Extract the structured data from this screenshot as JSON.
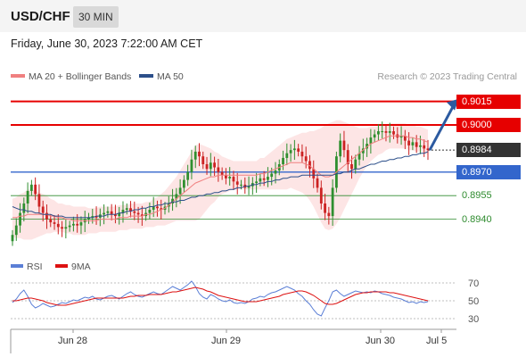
{
  "header": {
    "pair": "USD/CHF",
    "timeframe": "30 MIN"
  },
  "datetime": "Friday, June 30, 2023 7:22:00 AM CET",
  "legend": {
    "ma20_bb": "MA 20 + Bollinger Bands",
    "ma50": "MA 50",
    "credit": "Research © 2023 Trading Central"
  },
  "rsi_legend": {
    "rsi": "RSI",
    "ma9": "9MA"
  },
  "colors": {
    "resistance": "#e60000",
    "pivot": "#3366cc",
    "support": "#2e8b2e",
    "current": "#333333",
    "ma20": "#f08080",
    "bb_fill": "#fde0e0",
    "ma50": "#2c4f8a",
    "up_candle": "#2f8f2f",
    "down_candle": "#cc2222",
    "arrow": "#2c5aa0"
  },
  "chart_data": [
    {
      "type": "candlestick",
      "title": "USD/CHF",
      "ylim": [
        0.8925,
        0.9025
      ],
      "x_ticks": [
        "Jun 28",
        "Jun 29",
        "Jun 30",
        "Jul 5"
      ],
      "levels": [
        {
          "label": "0.9015",
          "value": 0.9015,
          "kind": "resistance"
        },
        {
          "label": "0.9000",
          "value": 0.9,
          "kind": "resistance"
        },
        {
          "label": "0.8984",
          "value": 0.8984,
          "kind": "current"
        },
        {
          "label": "0.8970",
          "value": 0.897,
          "kind": "pivot"
        },
        {
          "label": "0.8955",
          "value": 0.8955,
          "kind": "support"
        },
        {
          "label": "0.8940",
          "value": 0.894,
          "kind": "support"
        }
      ],
      "close": [
        0.893,
        0.8936,
        0.8944,
        0.895,
        0.8958,
        0.8962,
        0.8956,
        0.8948,
        0.8944,
        0.894,
        0.8938,
        0.8937,
        0.8935,
        0.8934,
        0.8935,
        0.8936,
        0.8937,
        0.8936,
        0.8938,
        0.894,
        0.8941,
        0.8942,
        0.8941,
        0.8943,
        0.8944,
        0.8945,
        0.8943,
        0.8942,
        0.8944,
        0.8946,
        0.8947,
        0.8945,
        0.8944,
        0.8943,
        0.8942,
        0.8944,
        0.8946,
        0.8948,
        0.8947,
        0.8946,
        0.8948,
        0.895,
        0.8953,
        0.8956,
        0.896,
        0.8965,
        0.897,
        0.8978,
        0.8983,
        0.898,
        0.8975,
        0.8972,
        0.8976,
        0.8973,
        0.897,
        0.8968,
        0.8966,
        0.8967,
        0.8964,
        0.8962,
        0.8962,
        0.896,
        0.8961,
        0.8963,
        0.8964,
        0.8966,
        0.8965,
        0.8967,
        0.8969,
        0.8971,
        0.8975,
        0.8979,
        0.8982,
        0.8984,
        0.8985,
        0.8983,
        0.898,
        0.8977,
        0.8972,
        0.8966,
        0.896,
        0.895,
        0.8944,
        0.8942,
        0.896,
        0.898,
        0.899,
        0.8984,
        0.8975,
        0.8972,
        0.8978,
        0.8982,
        0.8985,
        0.8988,
        0.8992,
        0.8994,
        0.8996,
        0.8996,
        0.8995,
        0.8996,
        0.8994,
        0.8992,
        0.8993,
        0.899,
        0.8987,
        0.8989,
        0.8986,
        0.8987,
        0.8985,
        0.8984
      ],
      "ma20": [
        0.8941,
        0.8941,
        0.8942,
        0.8942,
        0.8943,
        0.8943,
        0.8943,
        0.8943,
        0.8943,
        0.8943,
        0.8942,
        0.8942,
        0.8941,
        0.8941,
        0.894,
        0.894,
        0.8939,
        0.8939,
        0.8939,
        0.8939,
        0.8939,
        0.8939,
        0.8939,
        0.894,
        0.894,
        0.894,
        0.894,
        0.894,
        0.8941,
        0.8941,
        0.8941,
        0.8942,
        0.8942,
        0.8942,
        0.8942,
        0.8943,
        0.8943,
        0.8944,
        0.8945,
        0.8946,
        0.8947,
        0.8949,
        0.8951,
        0.8953,
        0.8955,
        0.8957,
        0.8959,
        0.8961,
        0.8963,
        0.8964,
        0.8965,
        0.8966,
        0.8967,
        0.8967,
        0.8968,
        0.8968,
        0.8968,
        0.8968,
        0.8968,
        0.8968,
        0.8968,
        0.8968,
        0.8968,
        0.8968,
        0.8968,
        0.8969,
        0.8969,
        0.897,
        0.8971,
        0.8972,
        0.8973,
        0.8974,
        0.8975,
        0.8976,
        0.8976,
        0.8976,
        0.8976,
        0.8975,
        0.8974,
        0.8972,
        0.897,
        0.8968,
        0.8967,
        0.8967,
        0.8968,
        0.897,
        0.8972,
        0.8974,
        0.8976,
        0.8978,
        0.898,
        0.8982,
        0.8984,
        0.8986,
        0.8988,
        0.8989,
        0.899,
        0.8991,
        0.8992,
        0.8993,
        0.8993,
        0.8993,
        0.8993,
        0.8993,
        0.8992,
        0.8992,
        0.8991,
        0.8991,
        0.899,
        0.8989
      ],
      "ma50": [
        0.8948,
        0.8947,
        0.8946,
        0.8946,
        0.8945,
        0.8945,
        0.8944,
        0.8944,
        0.8943,
        0.8943,
        0.8943,
        0.8942,
        0.8942,
        0.8942,
        0.8941,
        0.8941,
        0.8941,
        0.8941,
        0.8941,
        0.8941,
        0.8941,
        0.8941,
        0.8942,
        0.8942,
        0.8942,
        0.8943,
        0.8943,
        0.8943,
        0.8944,
        0.8944,
        0.8945,
        0.8945,
        0.8946,
        0.8946,
        0.8947,
        0.8947,
        0.8948,
        0.8948,
        0.8949,
        0.8949,
        0.895,
        0.895,
        0.8951,
        0.8951,
        0.8952,
        0.8952,
        0.8953,
        0.8954,
        0.8954,
        0.8955,
        0.8955,
        0.8956,
        0.8956,
        0.8957,
        0.8957,
        0.8958,
        0.8958,
        0.8959,
        0.8959,
        0.896,
        0.896,
        0.8961,
        0.8961,
        0.8962,
        0.8962,
        0.8963,
        0.8963,
        0.8964,
        0.8964,
        0.8965,
        0.8965,
        0.8966,
        0.8966,
        0.8967,
        0.8967,
        0.8967,
        0.8968,
        0.8968,
        0.8968,
        0.8968,
        0.8968,
        0.8968,
        0.8968,
        0.8968,
        0.8968,
        0.8969,
        0.8969,
        0.897,
        0.897,
        0.8971,
        0.8972,
        0.8972,
        0.8973,
        0.8974,
        0.8975,
        0.8975,
        0.8976,
        0.8977,
        0.8977,
        0.8978,
        0.8978,
        0.8979,
        0.8979,
        0.898,
        0.898,
        0.8981,
        0.8981,
        0.8982,
        0.8982,
        0.8983
      ],
      "bb_width": [
        0.0012,
        0.0013,
        0.0014,
        0.0015,
        0.0016,
        0.0016,
        0.0015,
        0.0014,
        0.0013,
        0.0012,
        0.0011,
        0.001,
        0.0009,
        0.0009,
        0.0009,
        0.0009,
        0.0009,
        0.0009,
        0.0009,
        0.0009,
        0.0008,
        0.0008,
        0.0008,
        0.0008,
        0.0008,
        0.0008,
        0.0008,
        0.0008,
        0.0008,
        0.0008,
        0.0008,
        0.0008,
        0.0008,
        0.0008,
        0.0008,
        0.0008,
        0.0008,
        0.0009,
        0.0009,
        0.001,
        0.0011,
        0.0012,
        0.0013,
        0.0014,
        0.0016,
        0.0018,
        0.002,
        0.0022,
        0.0024,
        0.0024,
        0.0022,
        0.002,
        0.0018,
        0.0016,
        0.0014,
        0.0012,
        0.0011,
        0.001,
        0.0009,
        0.0009,
        0.0009,
        0.0009,
        0.0009,
        0.0009,
        0.0009,
        0.001,
        0.001,
        0.0011,
        0.0012,
        0.0013,
        0.0014,
        0.0015,
        0.0016,
        0.0016,
        0.0017,
        0.0018,
        0.0019,
        0.002,
        0.0022,
        0.0024,
        0.0027,
        0.003,
        0.0033,
        0.0034,
        0.0034,
        0.0033,
        0.0031,
        0.0028,
        0.0025,
        0.0022,
        0.0019,
        0.0016,
        0.0014,
        0.0012,
        0.0011,
        0.001,
        0.0009,
        0.0009,
        0.0008,
        0.0008,
        0.0008,
        0.0008,
        0.0008,
        0.0008,
        0.0008,
        0.0008,
        0.0008,
        0.0008,
        0.0008,
        0.0008
      ],
      "forecast_arrow": {
        "from": 0.8984,
        "to": 0.9015
      }
    },
    {
      "type": "line",
      "title": "RSI",
      "ylim": [
        25,
        75
      ],
      "y_ticks": [
        "70",
        "50",
        "30"
      ],
      "series": [
        {
          "name": "RSI",
          "values": [
            48,
            52,
            58,
            62,
            55,
            46,
            42,
            44,
            47,
            45,
            43,
            44,
            46,
            48,
            47,
            49,
            51,
            50,
            52,
            54,
            53,
            55,
            52,
            51,
            53,
            55,
            56,
            54,
            52,
            55,
            58,
            60,
            57,
            55,
            54,
            56,
            58,
            60,
            58,
            57,
            60,
            63,
            66,
            64,
            62,
            65,
            68,
            72,
            66,
            58,
            54,
            52,
            57,
            55,
            52,
            50,
            49,
            51,
            48,
            47,
            48,
            47,
            49,
            52,
            53,
            55,
            54,
            57,
            59,
            60,
            62,
            64,
            66,
            64,
            62,
            58,
            55,
            50,
            46,
            40,
            35,
            33,
            42,
            50,
            60,
            62,
            58,
            55,
            57,
            59,
            61,
            60,
            59,
            60,
            59,
            61,
            60,
            58,
            57,
            56,
            54,
            53,
            52,
            50,
            48,
            49,
            47,
            49,
            48,
            49
          ]
        },
        {
          "name": "9MA",
          "values": [
            50,
            50,
            51,
            52,
            53,
            53,
            52,
            51,
            50,
            48,
            47,
            46,
            45,
            45,
            45,
            46,
            47,
            48,
            49,
            50,
            51,
            52,
            53,
            53,
            53,
            53,
            53,
            53,
            53,
            53,
            54,
            55,
            55,
            56,
            56,
            56,
            57,
            57,
            57,
            57,
            58,
            59,
            60,
            60,
            61,
            62,
            63,
            64,
            65,
            64,
            63,
            61,
            60,
            58,
            56,
            55,
            54,
            53,
            52,
            51,
            50,
            49,
            49,
            49,
            49,
            50,
            51,
            52,
            53,
            54,
            55,
            57,
            58,
            59,
            60,
            61,
            61,
            60,
            58,
            56,
            53,
            50,
            47,
            46,
            46,
            47,
            49,
            51,
            53,
            55,
            57,
            58,
            59,
            59,
            60,
            60,
            60,
            60,
            60,
            59,
            59,
            58,
            57,
            56,
            55,
            54,
            53,
            52,
            51,
            50
          ]
        }
      ]
    }
  ]
}
